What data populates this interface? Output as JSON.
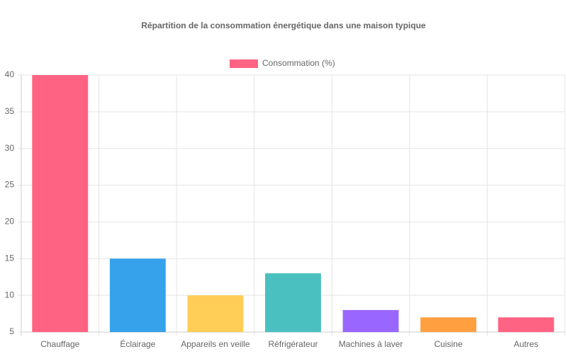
{
  "chart_data": {
    "type": "bar",
    "title": "Répartition de la consommation énergétique dans une maison typique",
    "categories": [
      "Chauffage",
      "Éclairage",
      "Appareils en veille",
      "Réfrigérateur",
      "Machines à laver",
      "Cuisine",
      "Autres"
    ],
    "series": [
      {
        "name": "Consommation (%)",
        "color": [
          "#ff6384",
          "#36a2eb",
          "#ffce56",
          "#4bc0c0",
          "#9966ff",
          "#ff9f40",
          "#ff6384"
        ],
        "values": [
          40,
          15,
          10,
          13,
          8,
          7,
          7
        ]
      }
    ],
    "ylim": [
      5,
      40
    ],
    "yticks": [
      5,
      10,
      15,
      20,
      25,
      30,
      35,
      40
    ],
    "grid": true
  }
}
